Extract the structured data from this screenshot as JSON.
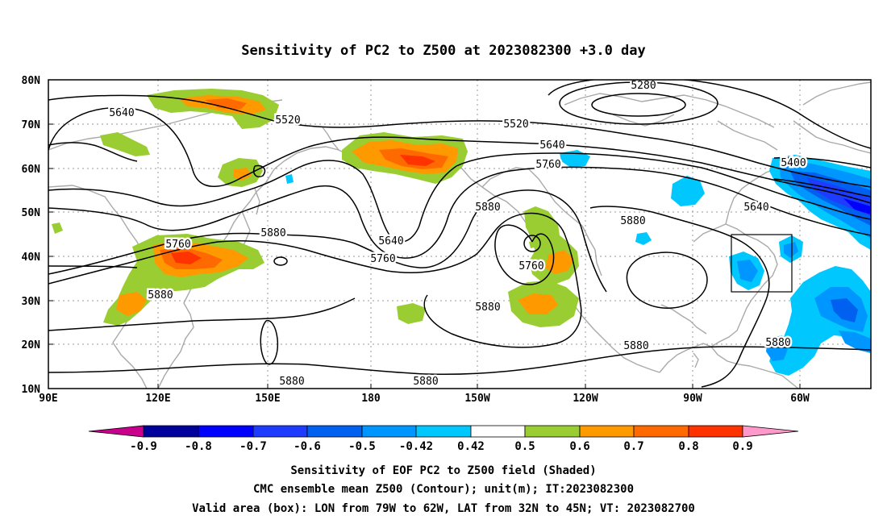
{
  "title": "Sensitivity of PC2 to Z500 at 2023082300 +3.0 day",
  "axes": {
    "x_ticks": [
      "90E",
      "120E",
      "150E",
      "180",
      "150W",
      "120W",
      "90W",
      "60W"
    ],
    "y_ticks": [
      "80N",
      "70N",
      "60N",
      "50N",
      "40N",
      "30N",
      "20N",
      "10N"
    ]
  },
  "colorbar": {
    "labels": [
      "-0.9",
      "-0.8",
      "-0.7",
      "-0.6",
      "-0.5",
      "-0.42",
      "0.42",
      "0.5",
      "0.6",
      "0.7",
      "0.8",
      "0.9"
    ],
    "colors": [
      "#c8008c",
      "#00009b",
      "#0000ff",
      "#1d3cff",
      "#0060f0",
      "#0096ff",
      "#00c8ff",
      "#ffffff",
      "#9acd32",
      "#ff9900",
      "#ff6a00",
      "#ff3300",
      "#ff0000",
      "#ff99cc"
    ]
  },
  "contour_labels": [
    {
      "text": "5280"
    },
    {
      "text": "5400"
    },
    {
      "text": "5520"
    },
    {
      "text": "5520"
    },
    {
      "text": "5640"
    },
    {
      "text": "5640"
    },
    {
      "text": "5640"
    },
    {
      "text": "5640"
    },
    {
      "text": "5760"
    },
    {
      "text": "5760"
    },
    {
      "text": "5760"
    },
    {
      "text": "5760"
    },
    {
      "text": "5880"
    },
    {
      "text": "5880"
    },
    {
      "text": "5880"
    },
    {
      "text": "5880"
    },
    {
      "text": "5880"
    },
    {
      "text": "5880"
    },
    {
      "text": "5880"
    },
    {
      "text": "5880"
    },
    {
      "text": "5880"
    }
  ],
  "valid_box": {
    "lon_west": "79W",
    "lon_east": "62W",
    "lat_south": "32N",
    "lat_north": "45N"
  },
  "caption": {
    "line1": "Sensitivity of EOF PC2 to Z500 field (Shaded)",
    "line2": "CMC ensemble mean Z500 (Contour); unit(m); IT:2023082300",
    "line3": "Valid area (box): LON from 79W to 62W, LAT from 32N to 45N; VT: 2023082700"
  }
}
